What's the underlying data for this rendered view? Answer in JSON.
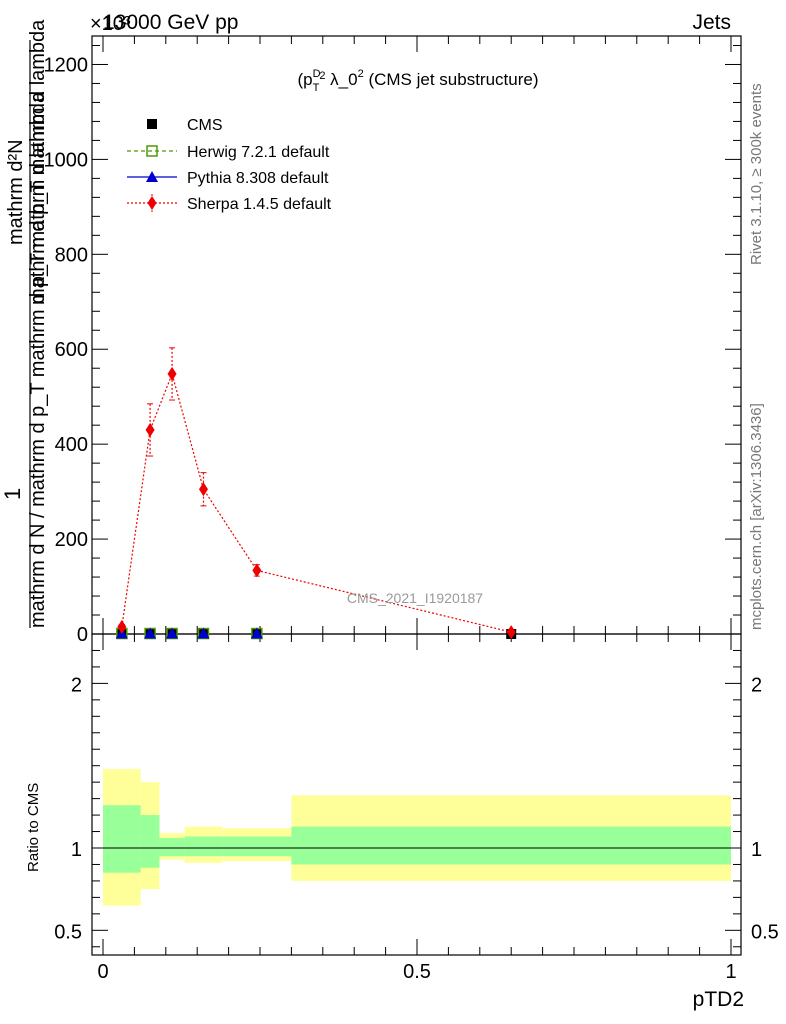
{
  "header": {
    "left": "13000 GeV pp",
    "right": "Jets",
    "exponent": "×10³"
  },
  "side": {
    "top": "Rivet 3.1.10, ≥ 300k events",
    "bottom": "mcplots.cern.ch [arXiv:1306.3436]"
  },
  "chart_data": {
    "type": "line",
    "title": "(p_T^D)^2 λ_0^2 (CMS jet substructure)",
    "watermark": "CMS_2021_I1920187",
    "xlabel": "pTD2",
    "ylabel": "1 / mathrm d N / mathrm d p_T mathrm d p_T mathrm d lambda",
    "ylabel_upper": "mathrm d²N",
    "ylabel_lower": "mathrm d N / mathrm d p_T mathrm d p_T mathrm d lambda",
    "xlim": [
      0,
      1
    ],
    "ylim": [
      0,
      1.26
    ],
    "y_exponent": 3,
    "x_ticks": [
      "0",
      "0.5",
      "1"
    ],
    "y_ticks": [
      "0",
      "200",
      "400",
      "600",
      "800",
      "1000",
      "1200"
    ],
    "legend": [
      "CMS",
      "Herwig 7.2.1 default",
      "Pythia 8.308 default",
      "Sherpa 1.4.5 default"
    ],
    "series": [
      {
        "name": "CMS",
        "color": "#000000",
        "marker": "square",
        "x": [
          0.03,
          0.075,
          0.11,
          0.16,
          0.245,
          0.65
        ],
        "y": [
          0.002,
          0.002,
          0.002,
          0.002,
          0.002,
          0.0
        ]
      },
      {
        "name": "Herwig 7.2.1 default",
        "color": "#4e9a06",
        "marker": "open-square",
        "x": [
          0.03,
          0.075,
          0.11,
          0.16,
          0.245
        ],
        "y": [
          0.001,
          0.001,
          0.001,
          0.001,
          0.001
        ]
      },
      {
        "name": "Pythia 8.308 default",
        "color": "#0000cc",
        "marker": "triangle",
        "x": [
          0.03,
          0.075,
          0.11,
          0.16,
          0.245
        ],
        "y": [
          0.001,
          0.001,
          0.001,
          0.001,
          0.001
        ]
      },
      {
        "name": "Sherpa 1.4.5 default",
        "color": "#ee0000",
        "marker": "diamond",
        "x": [
          0.03,
          0.075,
          0.11,
          0.16,
          0.245,
          0.65
        ],
        "y": [
          0.015,
          0.43,
          0.548,
          0.305,
          0.134,
          0.004
        ],
        "err": [
          0.005,
          0.055,
          0.055,
          0.035,
          0.012,
          0.002
        ]
      }
    ],
    "ratio": {
      "ylabel": "Ratio to CMS",
      "ylim": [
        0.35,
        2.3
      ],
      "y_ticks": [
        "0.5",
        "1",
        "2"
      ],
      "bands": [
        {
          "x0": 0.0,
          "x1": 0.06,
          "inner": [
            0.85,
            1.26
          ],
          "outer": [
            0.65,
            1.48
          ]
        },
        {
          "x0": 0.06,
          "x1": 0.09,
          "inner": [
            0.88,
            1.2
          ],
          "outer": [
            0.75,
            1.4
          ]
        },
        {
          "x0": 0.09,
          "x1": 0.13,
          "inner": [
            0.95,
            1.06
          ],
          "outer": [
            0.93,
            1.09
          ]
        },
        {
          "x0": 0.13,
          "x1": 0.19,
          "inner": [
            0.95,
            1.07
          ],
          "outer": [
            0.91,
            1.13
          ]
        },
        {
          "x0": 0.19,
          "x1": 0.3,
          "inner": [
            0.95,
            1.07
          ],
          "outer": [
            0.92,
            1.12
          ]
        },
        {
          "x0": 0.3,
          "x1": 1.0,
          "inner": [
            0.9,
            1.13
          ],
          "outer": [
            0.8,
            1.32
          ]
        }
      ]
    }
  }
}
